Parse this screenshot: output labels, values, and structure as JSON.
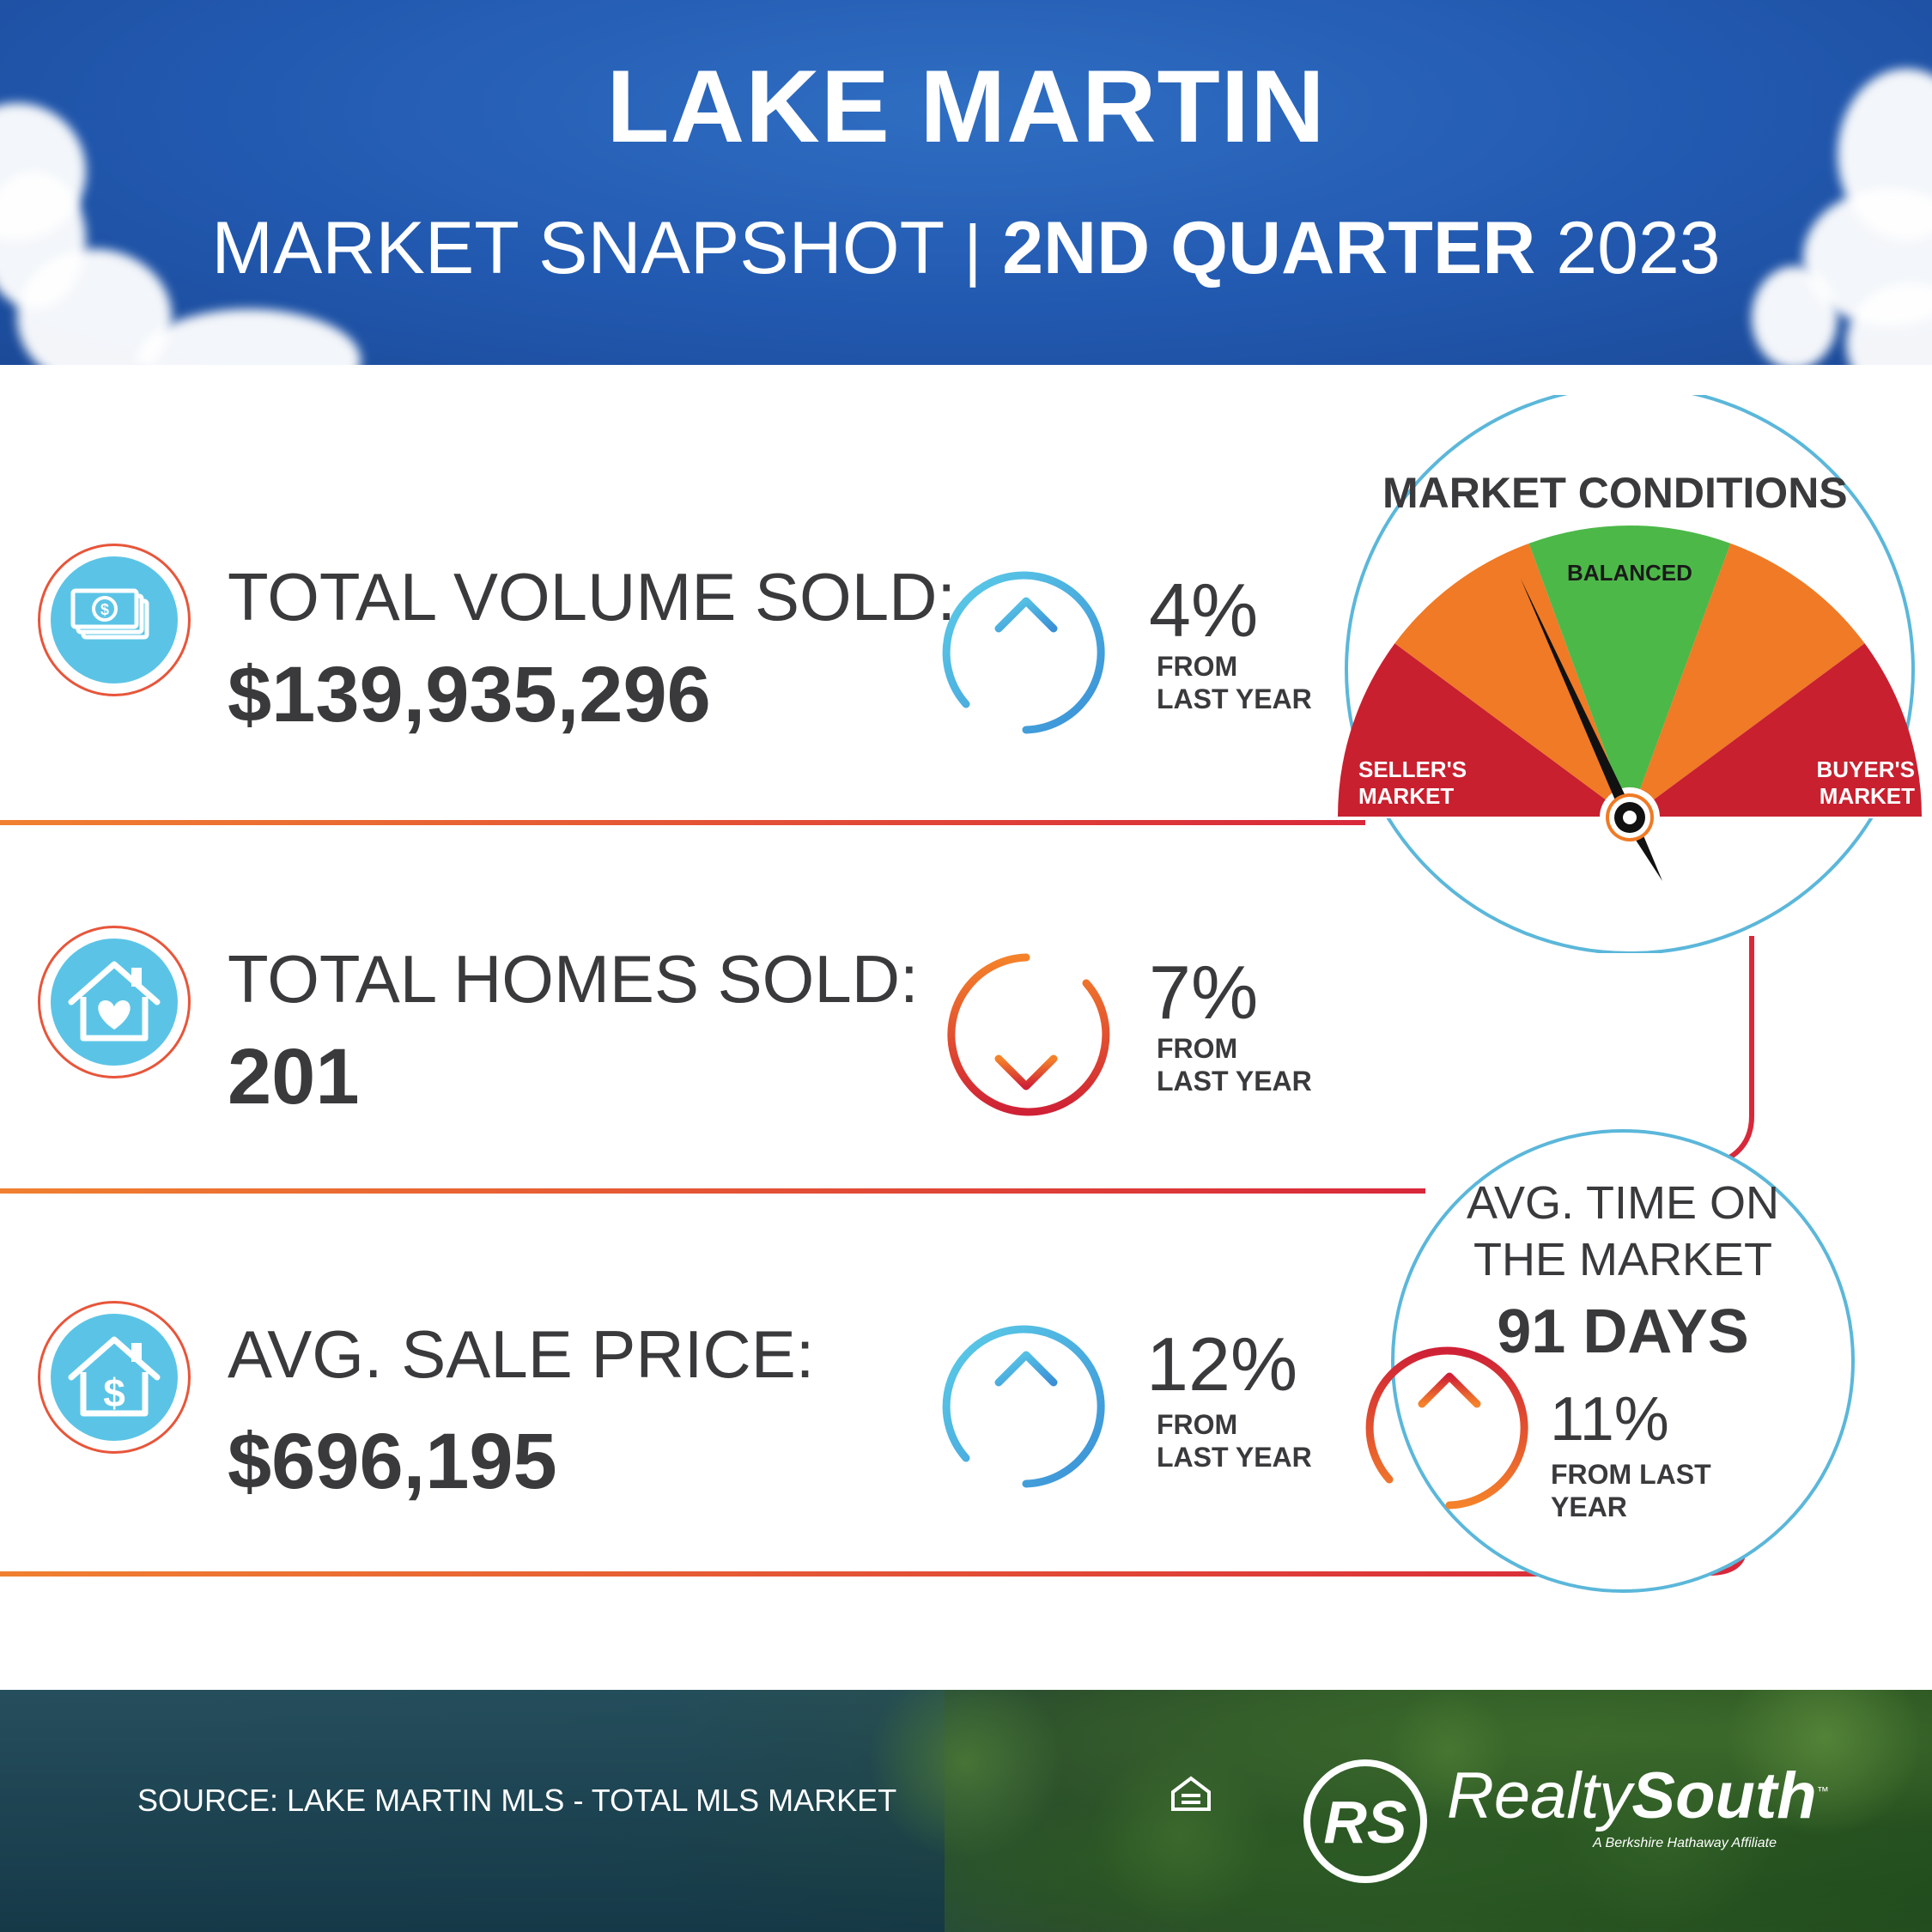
{
  "header": {
    "title": "LAKE MARTIN",
    "subtitle_left": "MARKET SNAPSHOT",
    "subtitle_sep": "|",
    "subtitle_bold": "2ND QUARTER",
    "subtitle_year": "2023"
  },
  "stats": [
    {
      "icon": "money-icon",
      "label": "TOTAL VOLUME SOLD:",
      "value": "$139,935,296",
      "direction": "up",
      "change": "4%",
      "from_line1": "FROM",
      "from_line2": "LAST YEAR"
    },
    {
      "icon": "house-heart-icon",
      "label": "TOTAL HOMES SOLD:",
      "value": "201",
      "direction": "down",
      "change": "7%",
      "from_line1": "FROM",
      "from_line2": "LAST YEAR"
    },
    {
      "icon": "house-dollar-icon",
      "label": "AVG. SALE PRICE:",
      "value": "$696,195",
      "direction": "up",
      "change": "12%",
      "from_line1": "FROM",
      "from_line2": "LAST YEAR"
    }
  ],
  "market_conditions": {
    "title": "MARKET CONDITIONS",
    "segments": [
      "SELLER'S MARKET",
      "BALANCED",
      "BUYER'S MARKET"
    ],
    "left_label_line1": "SELLER'S",
    "left_label_line2": "MARKET",
    "center_label": "BALANCED",
    "right_label_line1": "BUYER'S",
    "right_label_line2": "MARKET",
    "indicator": "between seller's market and balanced",
    "colors": {
      "red": "#c8202f",
      "orange": "#f07a25",
      "green": "#4cb848"
    }
  },
  "time_on_market": {
    "label_line1": "AVG. TIME ON",
    "label_line2": "THE MARKET",
    "value": "91 DAYS",
    "direction": "up",
    "change": "11%",
    "from_line1": "FROM LAST",
    "from_line2": "YEAR"
  },
  "footer": {
    "source": "SOURCE: LAKE MARTIN MLS - TOTAL MLS MARKET",
    "equal_housing_icon": "equal-housing-icon",
    "logo_monogram": "RS",
    "brand_light": "Realty",
    "brand_bold": "South",
    "brand_tm": "™",
    "brand_sub": "A Berkshire Hathaway Affiliate"
  },
  "colors": {
    "sky_blue": "#2259b0",
    "icon_blue": "#5bc4e6",
    "accent_orange": "#f08030",
    "accent_red": "#d8283a",
    "text_dark": "#3a3a3c"
  }
}
